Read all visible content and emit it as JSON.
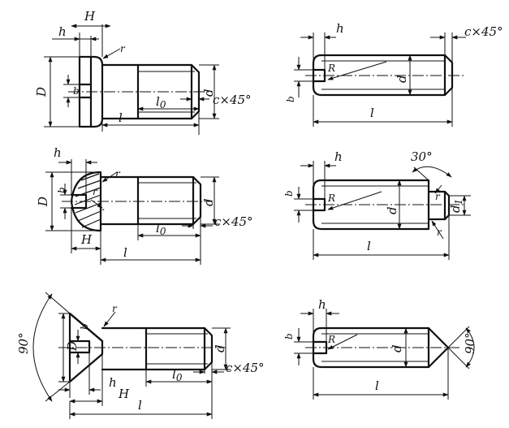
{
  "labels": {
    "H": "H",
    "h": "h",
    "D": "D",
    "b": "b",
    "d": "d",
    "d1": "d",
    "d1_sub": "1",
    "l": "l",
    "l0": "l",
    "l0_sub": "0",
    "c45": "c×45°",
    "r": "r",
    "R": "R",
    "a30": "30°",
    "a90": "90°"
  }
}
